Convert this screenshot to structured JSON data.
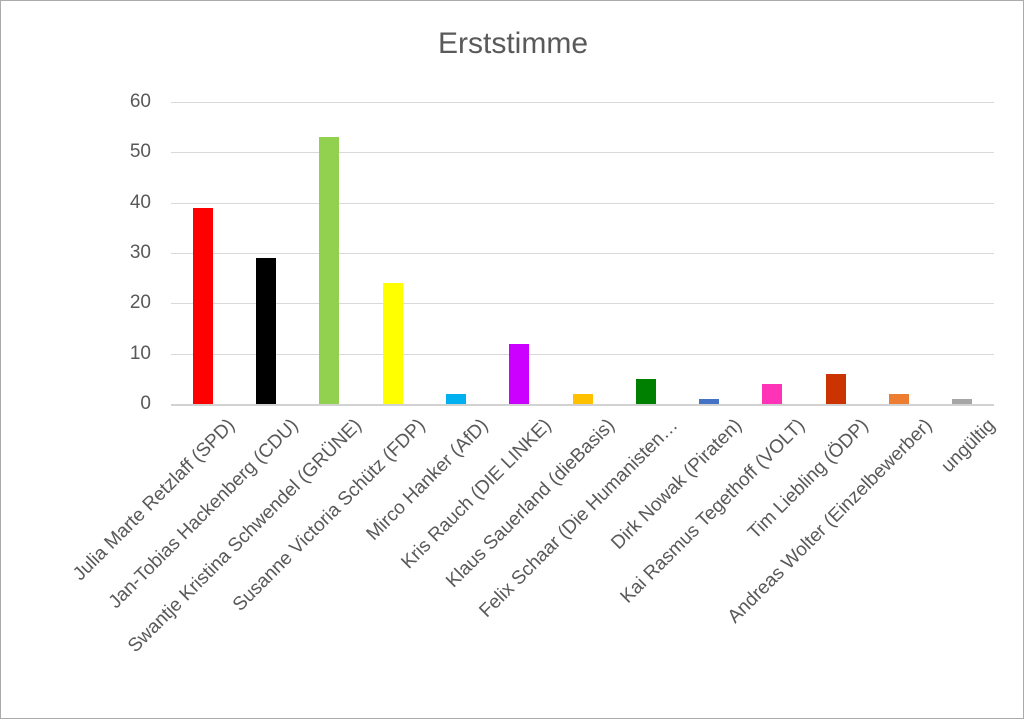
{
  "window": {
    "background": "#FFFFFF",
    "border_color": "#ABABAB"
  },
  "chart_data": {
    "type": "bar",
    "title": "Erststimme",
    "title_color": "#595959",
    "text_color": "#595959",
    "gridline_color": "#D9D9D9",
    "legend": "none",
    "grid": "horizontal",
    "ylim": [
      0,
      60
    ],
    "yticks": [
      0,
      10,
      20,
      30,
      40,
      50,
      60
    ],
    "xlabel": "",
    "ylabel": "",
    "categories": [
      "Julia Marte Retzlaff (SPD)",
      "Jan-Tobias Hackenberg (CDU)",
      "Swantje Kristina Schwendel (GRÜNE)",
      "Susanne Victoria Schütz (FDP)",
      "Mirco Hanker (AfD)",
      "Kris Rauch (DIE LINKE)",
      "Klaus Sauerland (dieBasis)",
      "Felix Schaar (Die Humanisten…",
      "Dirk Nowak (Piraten)",
      "Kai Rasmus Tegethoff (VOLT)",
      "Tim Liebling (ÖDP)",
      "Andreas Wolter (Einzelbewerber)",
      "ungültig"
    ],
    "values": [
      39,
      29,
      53,
      24,
      2,
      12,
      2,
      5,
      1,
      4,
      6,
      2,
      1
    ],
    "bar_colors": [
      "#FF0000",
      "#000000",
      "#92D050",
      "#FFFF00",
      "#00B0F0",
      "#CC00FF",
      "#FFC000",
      "#008000",
      "#4472C4",
      "#FF33B8",
      "#CB3301",
      "#ED7D31",
      "#A6A6A6"
    ]
  }
}
